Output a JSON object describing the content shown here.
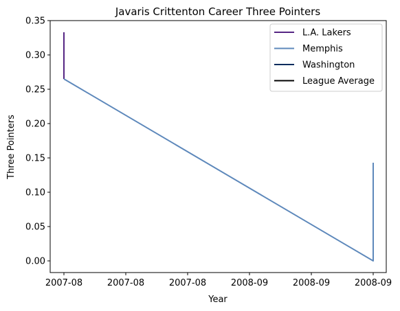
{
  "chart_data": {
    "type": "line",
    "title": "Javaris Crittenton Career Three Pointers",
    "xlabel": "Year",
    "ylabel": "Three Pointers",
    "x_tick_labels": [
      "2007-08",
      "2007-08",
      "2007-08",
      "2008-09",
      "2008-09",
      "2008-09"
    ],
    "ylim": [
      -0.017,
      0.35
    ],
    "y_ticks": [
      0.0,
      0.05,
      0.1,
      0.15,
      0.2,
      0.25,
      0.3,
      0.35
    ],
    "y_tick_labels": [
      "0.00",
      "0.05",
      "0.10",
      "0.15",
      "0.20",
      "0.25",
      "0.30",
      "0.35"
    ],
    "grid": false,
    "legend_position": "top-right",
    "series": [
      {
        "name": "L.A. Lakers",
        "color": "#552583",
        "points": [
          {
            "x": "2007-08",
            "y": 0.333
          },
          {
            "x": "2007-08",
            "y": 0.265
          }
        ]
      },
      {
        "name": "Memphis",
        "color": "#5D88BB",
        "points": [
          {
            "x": "2007-08",
            "y": 0.265
          },
          {
            "x": "2008-09",
            "y": 0.0
          },
          {
            "x": "2008-09",
            "y": 0.143
          }
        ]
      },
      {
        "name": "Washington",
        "color": "#002B5C",
        "points": []
      },
      {
        "name": "League Average",
        "color": "#000000",
        "points": []
      }
    ]
  }
}
